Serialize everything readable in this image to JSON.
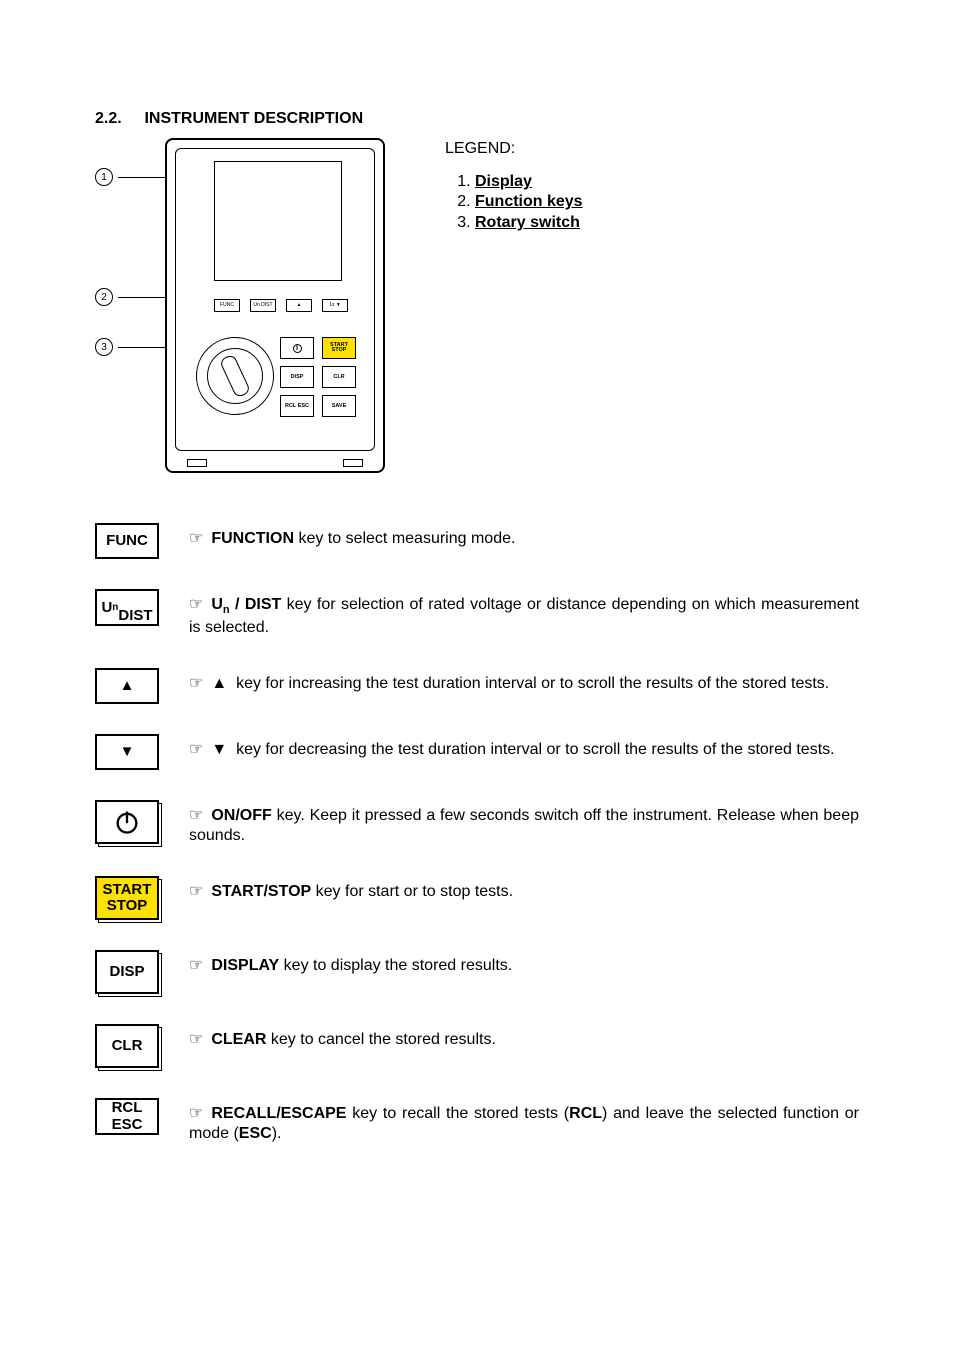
{
  "section": {
    "number": "2.2.",
    "title": "INSTRUMENT DESCRIPTION"
  },
  "legend": {
    "title": "LEGEND:",
    "items": [
      "Display",
      "Function keys",
      "Rotary switch"
    ]
  },
  "callouts": [
    "1",
    "2",
    "3"
  ],
  "miniButtons": [
    "FUNC",
    "Un DIST",
    "▲",
    "1s ▼"
  ],
  "gridKeys": {
    "power": "",
    "start": "START STOP",
    "disp": "DISP",
    "clr": "CLR",
    "rcl": "RCL ESC",
    "save": "SAVE"
  },
  "keys": [
    {
      "id": "func",
      "label": "FUNC",
      "iconClass": "",
      "descHtml": "<strong>FUNCTION</strong> key to select measuring mode."
    },
    {
      "id": "un-dist",
      "label": "U<span class=\"sub\">n</span><br>DIST",
      "iconClass": "",
      "descHtml": "<strong>U<span class=\"ssub\">n</span> / DIST</strong> key for selection of rated voltage or distance depending on which measurement is selected."
    },
    {
      "id": "up",
      "label": "▲",
      "iconClass": "",
      "descHtml": "▲&nbsp;&nbsp;key for increasing the test duration interval or to scroll the results of the stored tests."
    },
    {
      "id": "down",
      "label": "▼",
      "iconClass": "",
      "descHtml": "▼&nbsp;&nbsp;key for decreasing the test duration interval or to scroll the results of the stored tests."
    },
    {
      "id": "power",
      "label": "",
      "iconClass": "shadow-box tall power-icon",
      "descHtml": "<strong>ON/OFF</strong> key. Keep it pressed a few seconds switch off the instrument. Release when beep sounds."
    },
    {
      "id": "start-stop",
      "label": "START<br>STOP",
      "iconClass": "shadow-box tall yellow",
      "descHtml": "<strong>START/STOP</strong> key for start or to stop tests."
    },
    {
      "id": "disp",
      "label": "DISP",
      "iconClass": "shadow-box tall",
      "descHtml": "<strong>DISPLAY</strong> key to display the stored results."
    },
    {
      "id": "clr",
      "label": "CLR",
      "iconClass": "shadow-box tall",
      "descHtml": "<strong>CLEAR</strong> key to cancel the stored results."
    },
    {
      "id": "rcl-esc",
      "label": "RCL<br>ESC",
      "iconClass": "",
      "descHtml": "<strong>RECALL/ESCAPE</strong> key to recall the stored tests (<strong>RCL</strong>) and leave the selected function or mode (<strong>ESC</strong>)."
    }
  ],
  "handGlyph": "☞"
}
